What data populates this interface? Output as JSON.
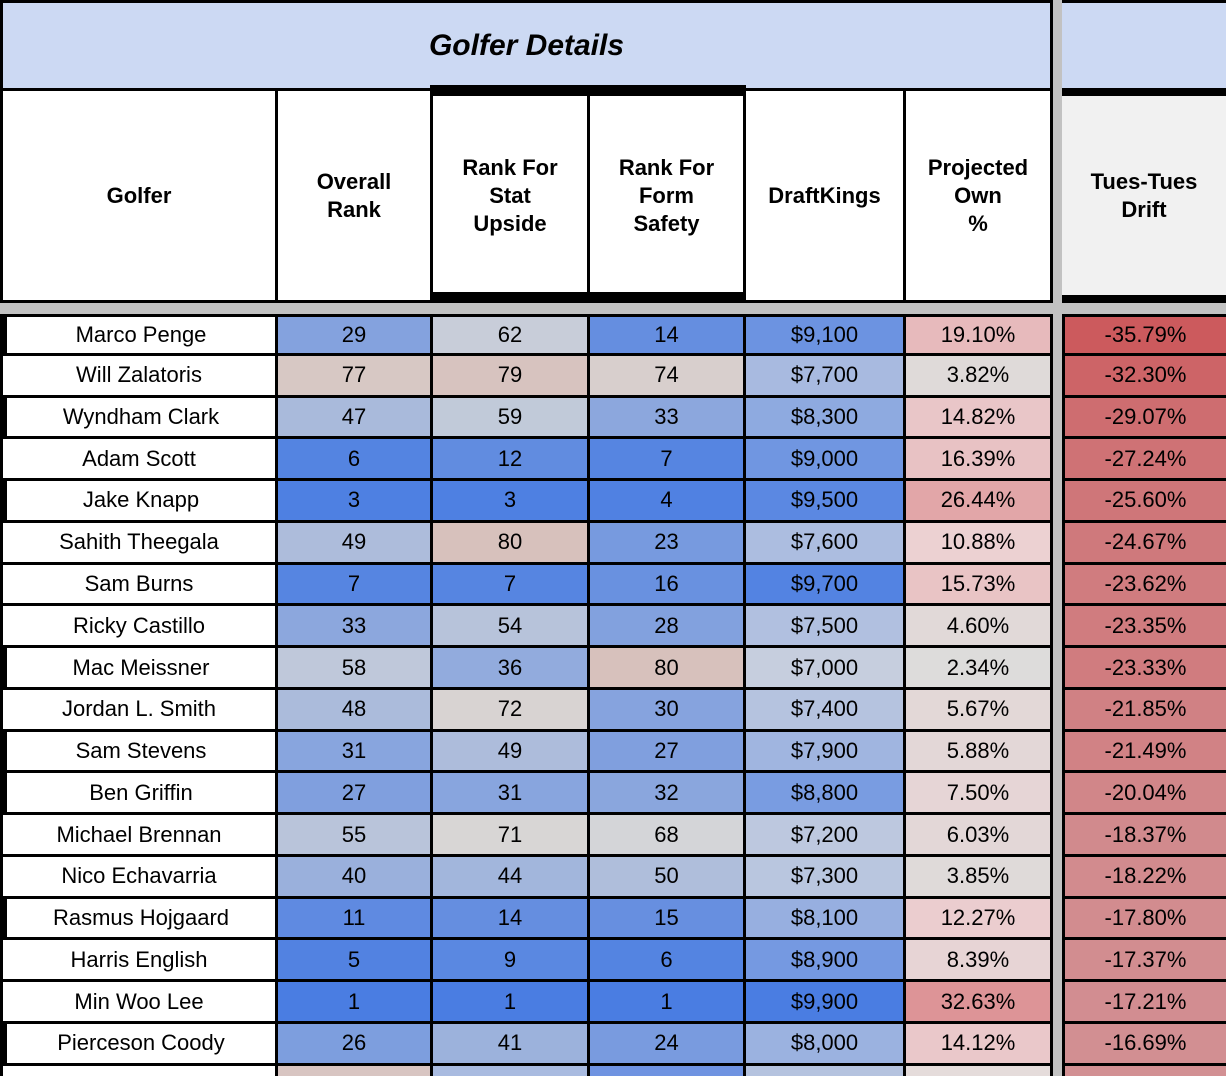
{
  "title": "Golfer Details",
  "headers": {
    "golfer": "Golfer",
    "overall": "Overall\nRank",
    "stat": "Rank For\nStat\nUpside",
    "form": "Rank For\nForm\nSafety",
    "dk": "DraftKings",
    "own": "Projected\nOwn\n%",
    "drift": "Tues-Tues\nDrift"
  },
  "colors": {
    "title_band_bg": "#ccd9f3",
    "header_cell_bg": "#ffffff",
    "drift_header_bg": "#f1f1f1",
    "pane_gutter_gray": "#c2c2c2",
    "border_black": "#000000",
    "scale_low_blue": "#4a7de2",
    "scale_neutral_gray": "#d8d8d8",
    "scale_high_pink": "#d7c1bc",
    "drift_strong_red": "#cc5a5d",
    "drift_light_red": "#d28f92"
  },
  "rows": [
    {
      "golfer": "Marco Penge",
      "overall": "29",
      "stat": "62",
      "form": "14",
      "dk": "$9,100",
      "own": "19.10%",
      "drift": "-35.79%",
      "left": "thick",
      "c": {
        "o": "#84a2de",
        "s": "#c8cdd9",
        "f": "#658ee0",
        "d": "#6c93e1",
        "p": "#e7babc",
        "t": "#cc5a5d"
      }
    },
    {
      "golfer": "Will Zalatoris",
      "overall": "77",
      "stat": "79",
      "form": "74",
      "dk": "$7,700",
      "own": "3.82%",
      "drift": "-32.30%",
      "left": "thin",
      "c": {
        "o": "#d7c8c4",
        "s": "#d7c3bf",
        "f": "#d8cfcd",
        "d": "#a8bae0",
        "p": "#dfdad9",
        "t": "#cd6467"
      }
    },
    {
      "golfer": "Wyndham Clark",
      "overall": "47",
      "stat": "59",
      "form": "33",
      "dk": "$8,300",
      "own": "14.82%",
      "drift": "-29.07%",
      "left": "thick",
      "c": {
        "o": "#a9badb",
        "s": "#c1cad9",
        "f": "#8ca7dd",
        "d": "#8eaae0",
        "p": "#e9c6c8",
        "t": "#ce6d70"
      }
    },
    {
      "golfer": "Adam Scott",
      "overall": "6",
      "stat": "12",
      "form": "7",
      "dk": "$9,000",
      "own": "16.39%",
      "drift": "-27.24%",
      "left": "thin",
      "c": {
        "o": "#5484e1",
        "s": "#618ce0",
        "f": "#5685e1",
        "d": "#7096e1",
        "p": "#e8c2c4",
        "t": "#cf7275"
      }
    },
    {
      "golfer": "Jake Knapp",
      "overall": "3",
      "stat": "3",
      "form": "4",
      "dk": "$9,500",
      "own": "26.44%",
      "drift": "-25.60%",
      "left": "thick",
      "c": {
        "o": "#4e80e2",
        "s": "#4e80e2",
        "f": "#5081e2",
        "d": "#5b88e2",
        "p": "#e2a6a8",
        "t": "#cf7679"
      }
    },
    {
      "golfer": "Sahith Theegala",
      "overall": "49",
      "stat": "80",
      "form": "23",
      "dk": "$7,600",
      "own": "10.88%",
      "drift": "-24.67%",
      "left": "thin",
      "c": {
        "o": "#adbcdb",
        "s": "#d7c1bc",
        "f": "#779adf",
        "d": "#acbde0",
        "p": "#ecd1d2",
        "t": "#cf797c"
      }
    },
    {
      "golfer": "Sam Burns",
      "overall": "7",
      "stat": "7",
      "form": "16",
      "dk": "$9,700",
      "own": "15.73%",
      "drift": "-23.62%",
      "left": "thin",
      "c": {
        "o": "#5685e1",
        "s": "#5685e1",
        "f": "#6991e0",
        "d": "#5383e2",
        "p": "#e9c4c5",
        "t": "#d07c7f"
      }
    },
    {
      "golfer": "Ricky Castillo",
      "overall": "33",
      "stat": "54",
      "form": "28",
      "dk": "$7,500",
      "own": "4.60%",
      "drift": "-23.35%",
      "left": "thin",
      "c": {
        "o": "#8ca7dd",
        "s": "#b7c3da",
        "f": "#82a1de",
        "d": "#b1c0e0",
        "p": "#e1d9d8",
        "t": "#d07c7f"
      }
    },
    {
      "golfer": "Mac Meissner",
      "overall": "58",
      "stat": "36",
      "form": "80",
      "dk": "$7,000",
      "own": "2.34%",
      "drift": "-23.33%",
      "left": "thick",
      "c": {
        "o": "#bfc8da",
        "s": "#92abdd",
        "f": "#d7c1bc",
        "d": "#c6cede",
        "p": "#dddcdb",
        "t": "#d07c7f"
      }
    },
    {
      "golfer": "Jordan L. Smith",
      "overall": "48",
      "stat": "72",
      "form": "30",
      "dk": "$7,400",
      "own": "5.67%",
      "drift": "-21.85%",
      "left": "thin",
      "c": {
        "o": "#abbbdb",
        "s": "#d8d3d2",
        "f": "#86a3de",
        "d": "#b5c3df",
        "p": "#e3d8d7",
        "t": "#d08184"
      }
    },
    {
      "golfer": "Sam Stevens",
      "overall": "31",
      "stat": "49",
      "form": "27",
      "dk": "$7,900",
      "own": "5.88%",
      "drift": "-21.49%",
      "left": "thick",
      "c": {
        "o": "#88a5de",
        "s": "#adbcdb",
        "f": "#809fde",
        "d": "#a0b5e0",
        "p": "#e3d7d7",
        "t": "#d18285"
      }
    },
    {
      "golfer": "Ben Griffin",
      "overall": "27",
      "stat": "31",
      "form": "32",
      "dk": "$8,800",
      "own": "7.50%",
      "drift": "-20.04%",
      "left": "thick",
      "c": {
        "o": "#809fde",
        "s": "#88a5de",
        "f": "#8aa6dd",
        "d": "#799ce1",
        "p": "#e6d5d6",
        "t": "#d18689"
      }
    },
    {
      "golfer": "Michael Brennan",
      "overall": "55",
      "stat": "71",
      "form": "68",
      "dk": "$7,200",
      "own": "6.03%",
      "drift": "-18.37%",
      "left": "thin",
      "c": {
        "o": "#b9c4da",
        "s": "#d8d6d5",
        "f": "#d4d5d8",
        "d": "#bdc8df",
        "p": "#e3d7d7",
        "t": "#d18a8d"
      }
    },
    {
      "golfer": "Nico Echavarria",
      "overall": "40",
      "stat": "44",
      "form": "50",
      "dk": "$7,300",
      "own": "3.85%",
      "drift": "-18.22%",
      "left": "thin",
      "c": {
        "o": "#9ab0dc",
        "s": "#a2b6dc",
        "f": "#afbedb",
        "d": "#b9c6df",
        "p": "#dfdad9",
        "t": "#d28b8e"
      }
    },
    {
      "golfer": "Rasmus Hojgaard",
      "overall": "11",
      "stat": "14",
      "form": "15",
      "dk": "$8,100",
      "own": "12.27%",
      "drift": "-17.80%",
      "left": "thick",
      "c": {
        "o": "#5f8ae1",
        "s": "#658ee0",
        "f": "#678fe0",
        "d": "#97afe0",
        "p": "#ebcdcf",
        "t": "#d28c8f"
      }
    },
    {
      "golfer": "Harris English",
      "overall": "5",
      "stat": "9",
      "form": "6",
      "dk": "$8,900",
      "own": "8.39%",
      "drift": "-17.37%",
      "left": "thin",
      "c": {
        "o": "#5282e1",
        "s": "#5a88e1",
        "f": "#5484e1",
        "d": "#7599e1",
        "p": "#e7d4d5",
        "t": "#d28d90"
      }
    },
    {
      "golfer": "Min Woo Lee",
      "overall": "1",
      "stat": "1",
      "form": "1",
      "dk": "$9,900",
      "own": "32.63%",
      "drift": "-17.21%",
      "left": "thin",
      "c": {
        "o": "#4a7de2",
        "s": "#4a7de2",
        "f": "#4a7de2",
        "d": "#4a7de2",
        "p": "#dd9497",
        "t": "#d28d91"
      }
    },
    {
      "golfer": "Pierceson Coody",
      "overall": "26",
      "stat": "41",
      "form": "24",
      "dk": "$8,000",
      "own": "14.12%",
      "drift": "-16.69%",
      "left": "thick",
      "c": {
        "o": "#7d9ede",
        "s": "#9cb2dc",
        "f": "#799bdf",
        "d": "#9bb2e0",
        "p": "#eac8ca",
        "t": "#d28f92"
      }
    }
  ],
  "partial_row": {
    "c": {
      "g": "#ffffff",
      "o": "#d8c5c2",
      "s": "#a9bbe0",
      "f": "#6f93e1",
      "d": "#b5c3df",
      "p": "#e5dcdb",
      "t": "#d29093"
    }
  }
}
